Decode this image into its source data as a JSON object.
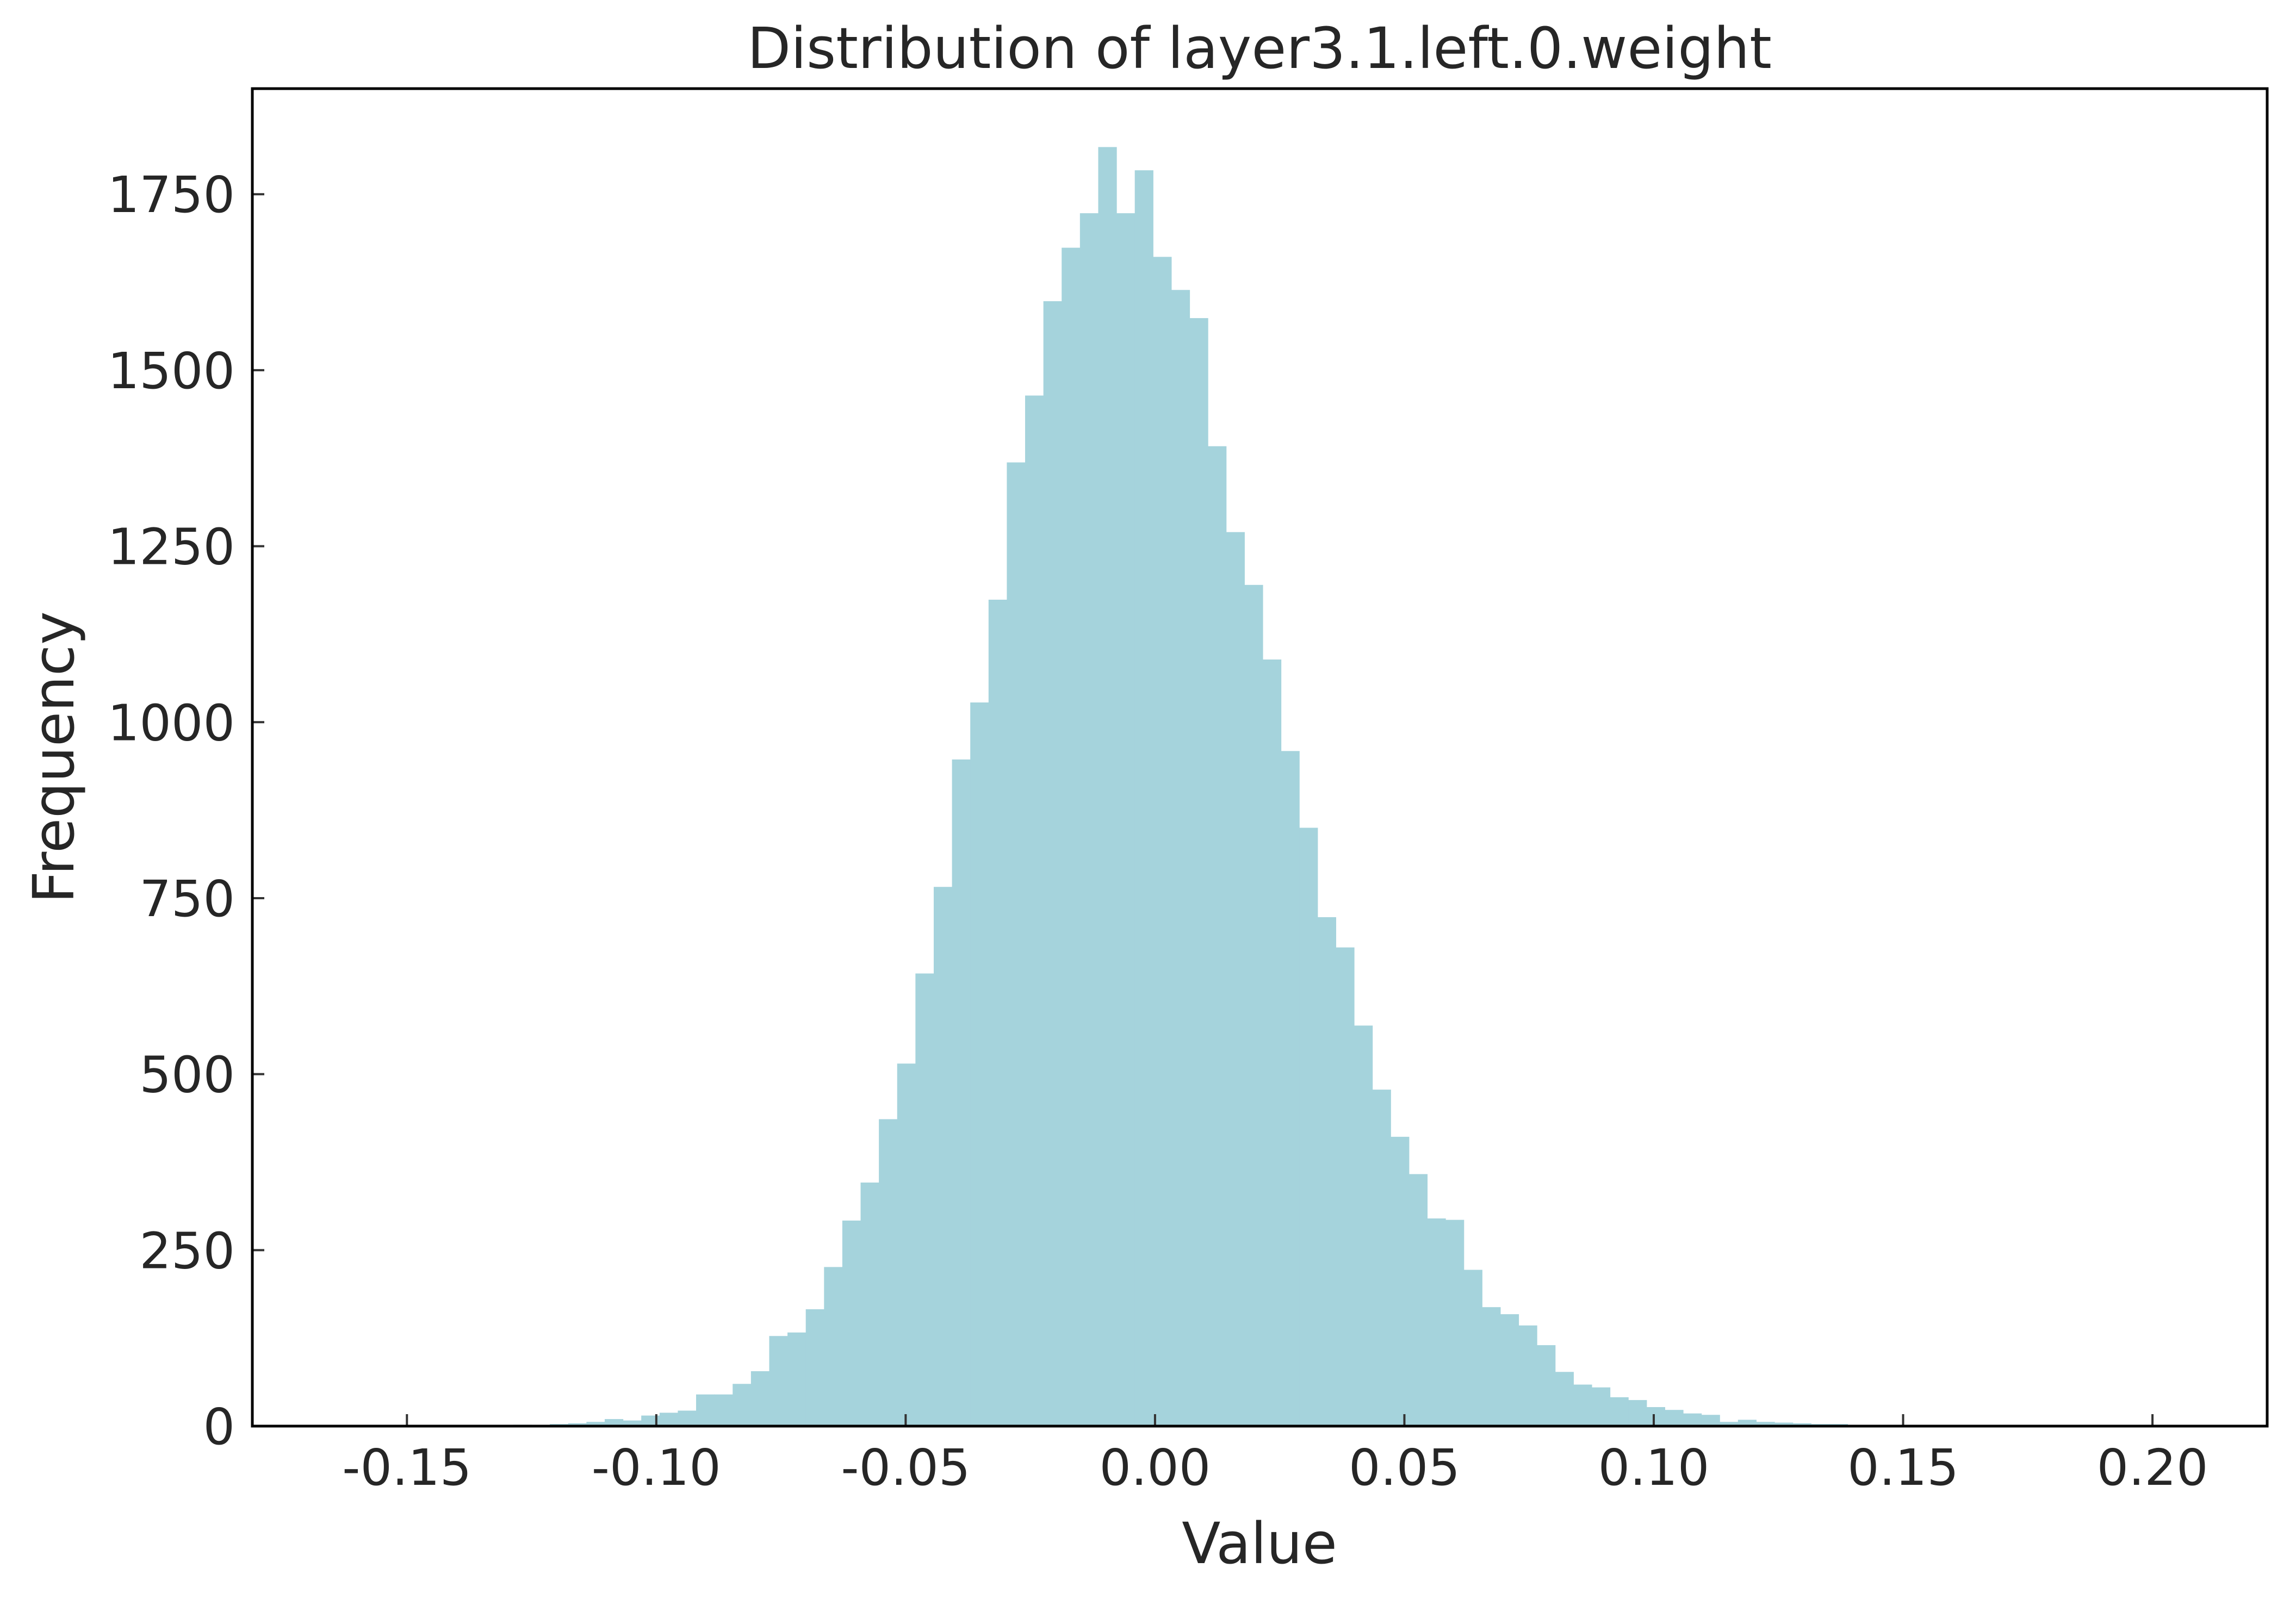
{
  "chart_data": {
    "type": "bar",
    "title": "Distribution of layer3.1.left.0.weight",
    "xlabel": "Value",
    "ylabel": "Frequency",
    "xlim": [
      -0.181,
      0.223
    ],
    "ylim": [
      0,
      1900
    ],
    "xticks": [
      -0.15,
      -0.1,
      -0.05,
      0.0,
      0.05,
      0.1,
      0.15,
      0.2
    ],
    "xtick_labels": [
      "-0.15",
      "-0.10",
      "-0.05",
      "0.00",
      "0.05",
      "0.10",
      "0.15",
      "0.20"
    ],
    "yticks": [
      0,
      250,
      500,
      750,
      1000,
      1250,
      1500,
      1750
    ],
    "ytick_labels": [
      "0",
      "250",
      "500",
      "750",
      "1000",
      "1250",
      "1500",
      "1750"
    ],
    "grid": false,
    "legend": false,
    "bar_color": "#a5d3dc",
    "bin_width": 0.003665,
    "bin_left_edges": [
      -0.12867,
      -0.125005,
      -0.12134,
      -0.117675,
      -0.11401,
      -0.110345,
      -0.10668,
      -0.103015,
      -0.09935,
      -0.095685,
      -0.09202,
      -0.088355,
      -0.08469,
      -0.081025,
      -0.07736,
      -0.073695,
      -0.07003,
      -0.066365,
      -0.0627,
      -0.059035,
      -0.05537,
      -0.051705,
      -0.04804,
      -0.044375,
      -0.04071,
      -0.037045,
      -0.03338,
      -0.029715,
      -0.02605,
      -0.022385,
      -0.01872,
      -0.015055,
      -0.01139,
      -0.007725,
      -0.00406,
      -0.000395,
      0.00327,
      0.006935,
      0.0106,
      0.014265,
      0.01793,
      0.021595,
      0.02526,
      0.028925,
      0.03259,
      0.036255,
      0.03992,
      0.043585,
      0.04725,
      0.050915,
      0.05458,
      0.058245,
      0.06191,
      0.065575,
      0.06924,
      0.072905,
      0.07657,
      0.080235,
      0.0839,
      0.087565,
      0.09123,
      0.094895,
      0.09856,
      0.102225,
      0.10589,
      0.109555,
      0.11322,
      0.116885,
      0.12055,
      0.124215,
      0.12788,
      0.131545,
      0.13521
    ],
    "values": [
      2,
      1,
      3,
      4,
      6,
      10,
      8,
      15,
      19,
      22,
      45,
      45,
      60,
      78,
      128,
      133,
      166,
      226,
      292,
      346,
      436,
      515,
      643,
      766,
      947,
      1028,
      1174,
      1369,
      1464,
      1598,
      1674,
      1723,
      1817,
      1723,
      1784,
      1661,
      1614,
      1574,
      1392,
      1270,
      1195,
      1089,
      959,
      850,
      723,
      680,
      569,
      478,
      411,
      358,
      295,
      293,
      222,
      169,
      159,
      143,
      115,
      77,
      59,
      55,
      41,
      37,
      27,
      23,
      18,
      16,
      6,
      9,
      6,
      5,
      4,
      3,
      3
    ]
  }
}
